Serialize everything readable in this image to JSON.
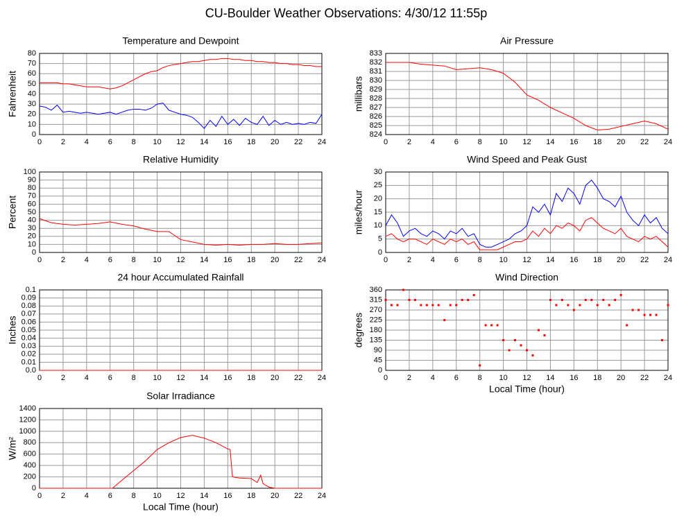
{
  "title": "CU-Boulder Weather Observations: 4/30/12 11:55p",
  "chart_data": [
    {
      "type": "line",
      "title": "Temperature and Dewpoint",
      "ylabel": "Fahrenheit",
      "grid": true,
      "xlim": [
        0,
        24
      ],
      "xticks": [
        0,
        2,
        4,
        6,
        8,
        10,
        12,
        14,
        16,
        18,
        20,
        22,
        24
      ],
      "ylim": [
        0,
        80
      ],
      "yticks": [
        0,
        10,
        20,
        30,
        40,
        50,
        60,
        70,
        80
      ],
      "x": [
        0,
        0.5,
        1,
        1.5,
        2,
        2.5,
        3,
        3.5,
        4,
        4.5,
        5,
        5.5,
        6,
        6.5,
        7,
        7.5,
        8,
        8.5,
        9,
        9.5,
        10,
        10.5,
        11,
        11.5,
        12,
        12.5,
        13,
        13.5,
        14,
        14.5,
        15,
        15.5,
        16,
        16.5,
        17,
        17.5,
        18,
        18.5,
        19,
        19.5,
        20,
        20.5,
        21,
        21.5,
        22,
        22.5,
        23,
        23.5,
        24
      ],
      "series": [
        {
          "color": "#ff0000",
          "values": [
            51,
            51,
            51,
            51,
            50,
            50,
            49,
            48,
            47,
            47,
            47,
            46,
            45,
            46,
            48,
            51,
            54,
            57,
            60,
            62,
            63,
            66,
            68,
            69,
            70,
            71,
            72,
            72,
            73,
            74,
            74,
            75,
            75,
            74,
            74,
            73,
            73,
            72,
            72,
            71,
            71,
            70,
            70,
            69,
            69,
            68,
            68,
            67,
            67
          ]
        },
        {
          "color": "#0000ff",
          "values": [
            28,
            27,
            24,
            29,
            22,
            23,
            22,
            21,
            22,
            21,
            20,
            21,
            22,
            20,
            22,
            24,
            25,
            25,
            24,
            26,
            30,
            31,
            24,
            22,
            20,
            19,
            17,
            12,
            6,
            14,
            8,
            18,
            10,
            15,
            9,
            16,
            12,
            10,
            18,
            9,
            14,
            10,
            12,
            10,
            11,
            10,
            12,
            11,
            20
          ]
        }
      ]
    },
    {
      "type": "line",
      "title": "Air Pressure",
      "ylabel": "millibars",
      "grid": true,
      "xlim": [
        0,
        24
      ],
      "xticks": [
        0,
        2,
        4,
        6,
        8,
        10,
        12,
        14,
        16,
        18,
        20,
        22,
        24
      ],
      "ylim": [
        824,
        833
      ],
      "yticks": [
        824,
        825,
        826,
        827,
        828,
        829,
        830,
        831,
        832,
        833
      ],
      "x": [
        0,
        1,
        2,
        3,
        4,
        5,
        6,
        7,
        8,
        9,
        10,
        11,
        12,
        13,
        14,
        15,
        16,
        17,
        18,
        19,
        20,
        21,
        22,
        23,
        24
      ],
      "series": [
        {
          "color": "#ff0000",
          "values": [
            832,
            832,
            832,
            831.8,
            831.7,
            831.6,
            831.2,
            831.3,
            831.4,
            831.2,
            830.8,
            829.8,
            828.4,
            827.8,
            827,
            826.4,
            825.8,
            825,
            824.5,
            824.6,
            824.9,
            825.2,
            825.5,
            825.2,
            824.6
          ]
        }
      ]
    },
    {
      "type": "line",
      "title": "Relative Humidity",
      "ylabel": "Percent",
      "grid": true,
      "xlim": [
        0,
        24
      ],
      "xticks": [
        0,
        2,
        4,
        6,
        8,
        10,
        12,
        14,
        16,
        18,
        20,
        22,
        24
      ],
      "ylim": [
        0,
        100
      ],
      "yticks": [
        0,
        10,
        20,
        30,
        40,
        50,
        60,
        70,
        80,
        90,
        100
      ],
      "x": [
        0,
        1,
        2,
        3,
        4,
        5,
        6,
        7,
        8,
        9,
        10,
        11,
        12,
        13,
        14,
        15,
        16,
        17,
        18,
        19,
        20,
        21,
        22,
        23,
        24
      ],
      "series": [
        {
          "color": "#ff0000",
          "values": [
            42,
            37,
            35,
            34,
            35,
            36,
            38,
            35,
            33,
            29,
            26,
            26,
            16,
            13,
            10,
            9,
            10,
            9,
            10,
            10,
            11,
            10,
            10,
            11,
            12
          ]
        }
      ]
    },
    {
      "type": "line",
      "title": "Wind Speed and Peak Gust",
      "ylabel": "miles/hour",
      "grid": true,
      "xlim": [
        0,
        24
      ],
      "xticks": [
        0,
        2,
        4,
        6,
        8,
        10,
        12,
        14,
        16,
        18,
        20,
        22,
        24
      ],
      "ylim": [
        0,
        30
      ],
      "yticks": [
        0,
        5,
        10,
        15,
        20,
        25,
        30
      ],
      "x": [
        0,
        0.5,
        1,
        1.5,
        2,
        2.5,
        3,
        3.5,
        4,
        4.5,
        5,
        5.5,
        6,
        6.5,
        7,
        7.5,
        8,
        8.5,
        9,
        9.5,
        10,
        10.5,
        11,
        11.5,
        12,
        12.5,
        13,
        13.5,
        14,
        14.5,
        15,
        15.5,
        16,
        16.5,
        17,
        17.5,
        18,
        18.5,
        19,
        19.5,
        20,
        20.5,
        21,
        21.5,
        22,
        22.5,
        23,
        23.5,
        24
      ],
      "series": [
        {
          "color": "#0000ff",
          "values": [
            10,
            14,
            11,
            6,
            8,
            9,
            7,
            6,
            8,
            7,
            5,
            8,
            7,
            9,
            6,
            7,
            3,
            2,
            2,
            3,
            4,
            5,
            7,
            8,
            10,
            17,
            15,
            18,
            14,
            22,
            19,
            24,
            22,
            18,
            25,
            27,
            24,
            20,
            19,
            17,
            21,
            15,
            12,
            10,
            14,
            11,
            13,
            9,
            7
          ]
        },
        {
          "color": "#ff0000",
          "values": [
            6,
            7,
            5,
            4,
            5,
            5,
            4,
            3,
            5,
            4,
            3,
            5,
            4,
            5,
            3,
            4,
            1,
            1,
            1,
            1,
            2,
            3,
            4,
            4,
            5,
            8,
            6,
            9,
            7,
            10,
            9,
            11,
            10,
            8,
            12,
            13,
            11,
            9,
            8,
            7,
            9,
            6,
            5,
            4,
            6,
            5,
            6,
            4,
            2
          ]
        }
      ]
    },
    {
      "type": "line",
      "title": "24 hour Accumulated Rainfall",
      "ylabel": "Inches",
      "grid": true,
      "xlim": [
        0,
        24
      ],
      "xticks": [
        0,
        2,
        4,
        6,
        8,
        10,
        12,
        14,
        16,
        18,
        20,
        22,
        24
      ],
      "ylim": [
        0,
        0.1
      ],
      "yticks": [
        {
          "value": 0,
          "label": "0.0"
        },
        0.01,
        0.02,
        0.03,
        0.04,
        0.05,
        0.06,
        0.07,
        0.08,
        0.09,
        0.1
      ],
      "x": [
        0,
        1,
        2,
        3,
        4,
        5,
        6,
        7,
        8,
        9,
        10,
        11,
        12,
        13,
        14,
        15,
        16,
        17,
        18,
        19,
        20,
        21,
        22,
        23,
        24
      ],
      "series": [
        {
          "color": "#ff0000",
          "values": [
            0,
            0,
            0,
            0,
            0,
            0,
            0,
            0,
            0,
            0,
            0,
            0,
            0,
            0,
            0,
            0,
            0,
            0,
            0,
            0,
            0,
            0,
            0,
            0,
            0
          ]
        }
      ]
    },
    {
      "type": "scatter",
      "title": "Wind Direction",
      "ylabel": "degrees",
      "xlabel": "Local Time (hour)",
      "grid": true,
      "xlim": [
        0,
        24
      ],
      "xticks": [
        0,
        2,
        4,
        6,
        8,
        10,
        12,
        14,
        16,
        18,
        20,
        22,
        24
      ],
      "ylim": [
        0,
        360
      ],
      "yticks": [
        0,
        45,
        90,
        135,
        180,
        225,
        270,
        315,
        360
      ],
      "x": [
        0,
        0.5,
        1,
        1.5,
        2,
        2.5,
        3,
        3.5,
        4,
        4.5,
        5,
        5.5,
        6,
        6.5,
        7,
        7.5,
        8,
        8.5,
        9,
        9.5,
        10,
        10.5,
        11,
        11.5,
        12,
        12.5,
        13,
        13.5,
        14,
        14.5,
        15,
        15.5,
        16,
        16.5,
        17,
        17.5,
        18,
        18.5,
        19,
        19.5,
        20,
        20.5,
        21,
        21.5,
        22,
        22.5,
        23,
        23.5,
        24
      ],
      "series": [
        {
          "color": "#ff0000",
          "values": [
            315,
            292,
            292,
            360,
            315,
            315,
            292,
            292,
            292,
            292,
            225,
            292,
            292,
            315,
            315,
            337,
            22,
            202,
            202,
            202,
            135,
            90,
            135,
            112,
            90,
            67,
            180,
            157,
            315,
            292,
            315,
            292,
            270,
            292,
            315,
            315,
            292,
            315,
            292,
            315,
            337,
            202,
            270,
            270,
            248,
            248,
            248,
            135,
            292
          ]
        }
      ]
    },
    {
      "type": "line",
      "title": "Solar Irradiance",
      "ylabel": "W/m²",
      "xlabel": "Local Time (hour)",
      "grid": true,
      "xlim": [
        0,
        24
      ],
      "xticks": [
        0,
        2,
        4,
        6,
        8,
        10,
        12,
        14,
        16,
        18,
        20,
        22,
        24
      ],
      "ylim": [
        0,
        1400
      ],
      "yticks": [
        0,
        200,
        400,
        600,
        800,
        1000,
        1200,
        1400
      ],
      "x": [
        0,
        2,
        4,
        6,
        6.2,
        7,
        8,
        9,
        10,
        11,
        12,
        13,
        14,
        15,
        16,
        16.2,
        16.4,
        17,
        18,
        18.5,
        18.8,
        19,
        19.5,
        20,
        22,
        24
      ],
      "series": [
        {
          "color": "#ff0000",
          "values": [
            0,
            0,
            0,
            0,
            0,
            140,
            310,
            480,
            680,
            800,
            890,
            930,
            880,
            800,
            690,
            680,
            200,
            180,
            170,
            100,
            230,
            80,
            20,
            0,
            0,
            0
          ]
        }
      ]
    }
  ]
}
